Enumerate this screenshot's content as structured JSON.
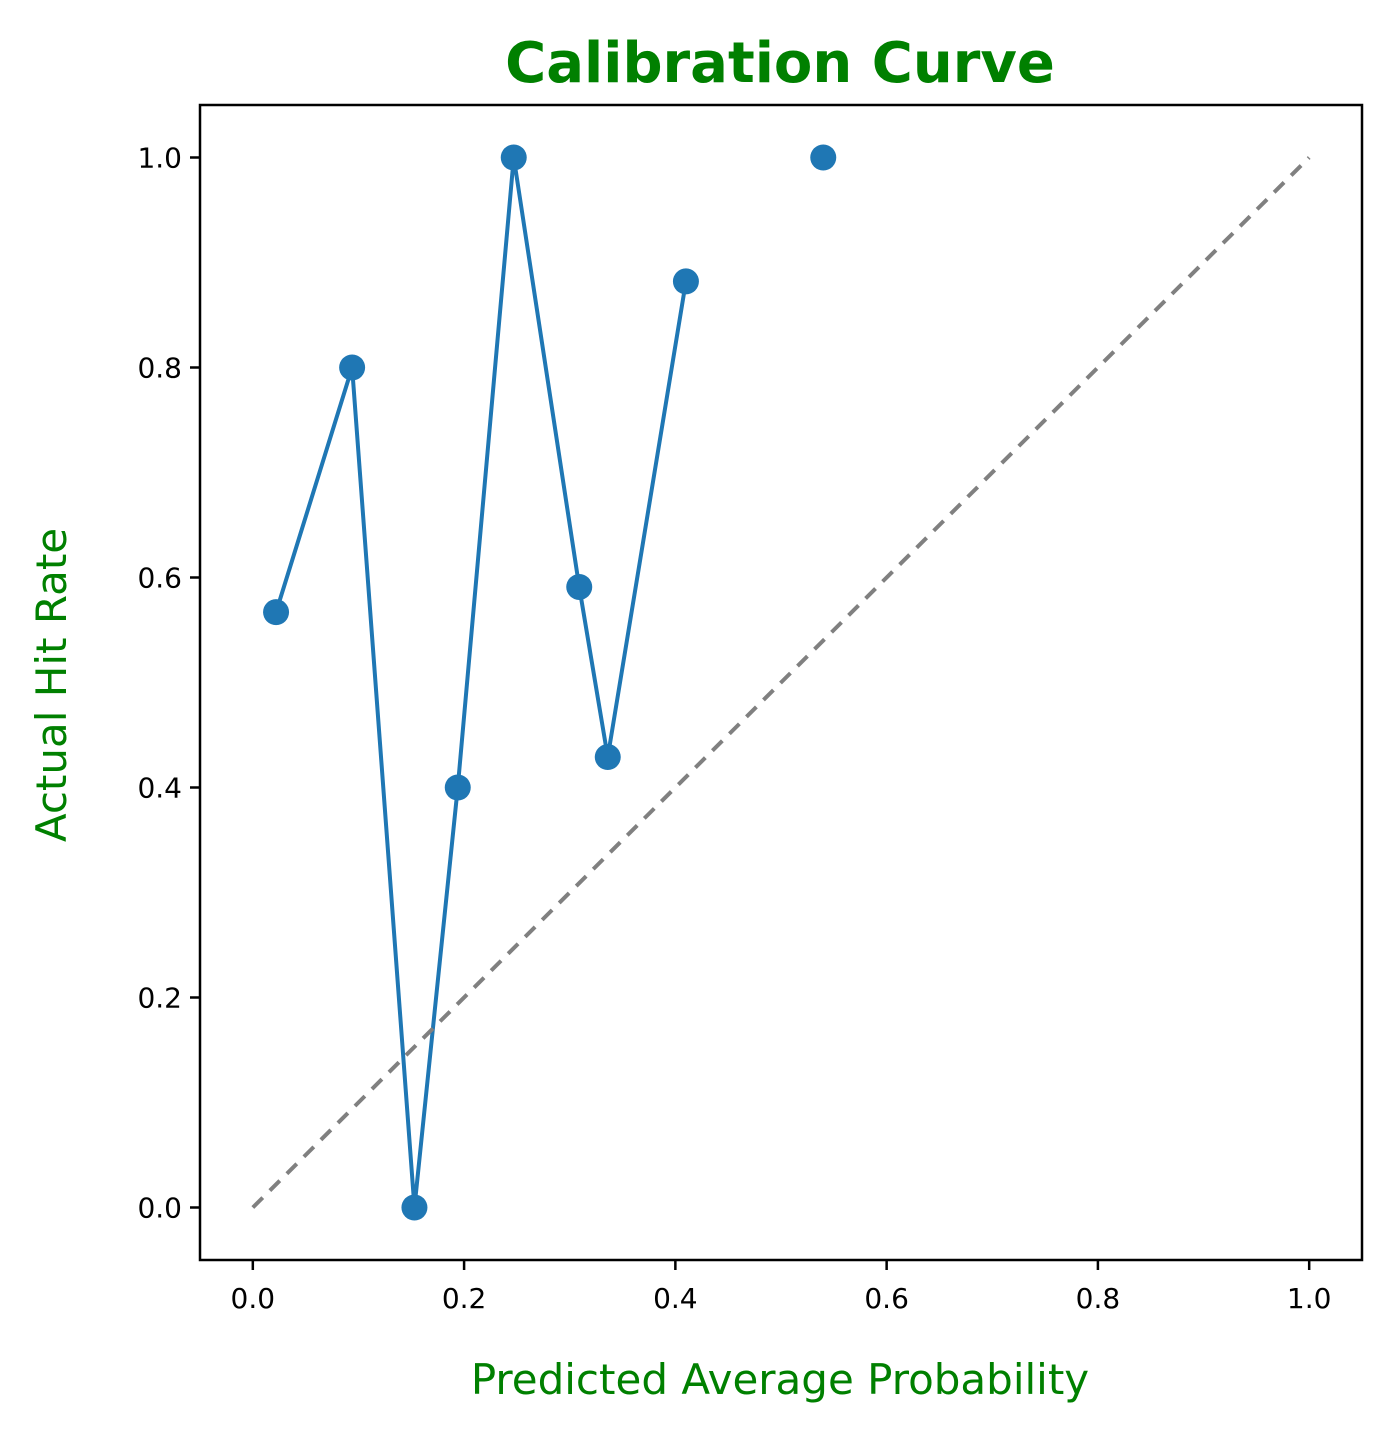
{
  "chart_data": {
    "type": "line",
    "title": "Calibration Curve",
    "xlabel": "Predicted Average Probability",
    "ylabel": "Actual Hit Rate",
    "xlim": [
      -0.05,
      1.05
    ],
    "ylim": [
      -0.05,
      1.05
    ],
    "xticks": [
      "0.0",
      "0.2",
      "0.4",
      "0.6",
      "0.8",
      "1.0"
    ],
    "yticks": [
      "0.0",
      "0.2",
      "0.4",
      "0.6",
      "0.8",
      "1.0"
    ],
    "grid": false,
    "series": [
      {
        "x": [
          0.022,
          0.094,
          0.153,
          0.194,
          0.247,
          0.309,
          0.336,
          0.41
        ],
        "y": [
          0.567,
          0.8,
          0.0,
          0.4,
          1.0,
          0.591,
          0.429,
          0.882
        ],
        "style": "line-markers"
      },
      {
        "x": [
          0.54
        ],
        "y": [
          1.0
        ],
        "style": "markers"
      },
      {
        "x": [
          0.0,
          1.0
        ],
        "y": [
          0.0,
          1.0
        ],
        "style": "dashed"
      }
    ],
    "colors": {
      "series": "#1f77b4",
      "reference": "#808080",
      "title": "#008000",
      "axis_labels": "#008000"
    }
  }
}
